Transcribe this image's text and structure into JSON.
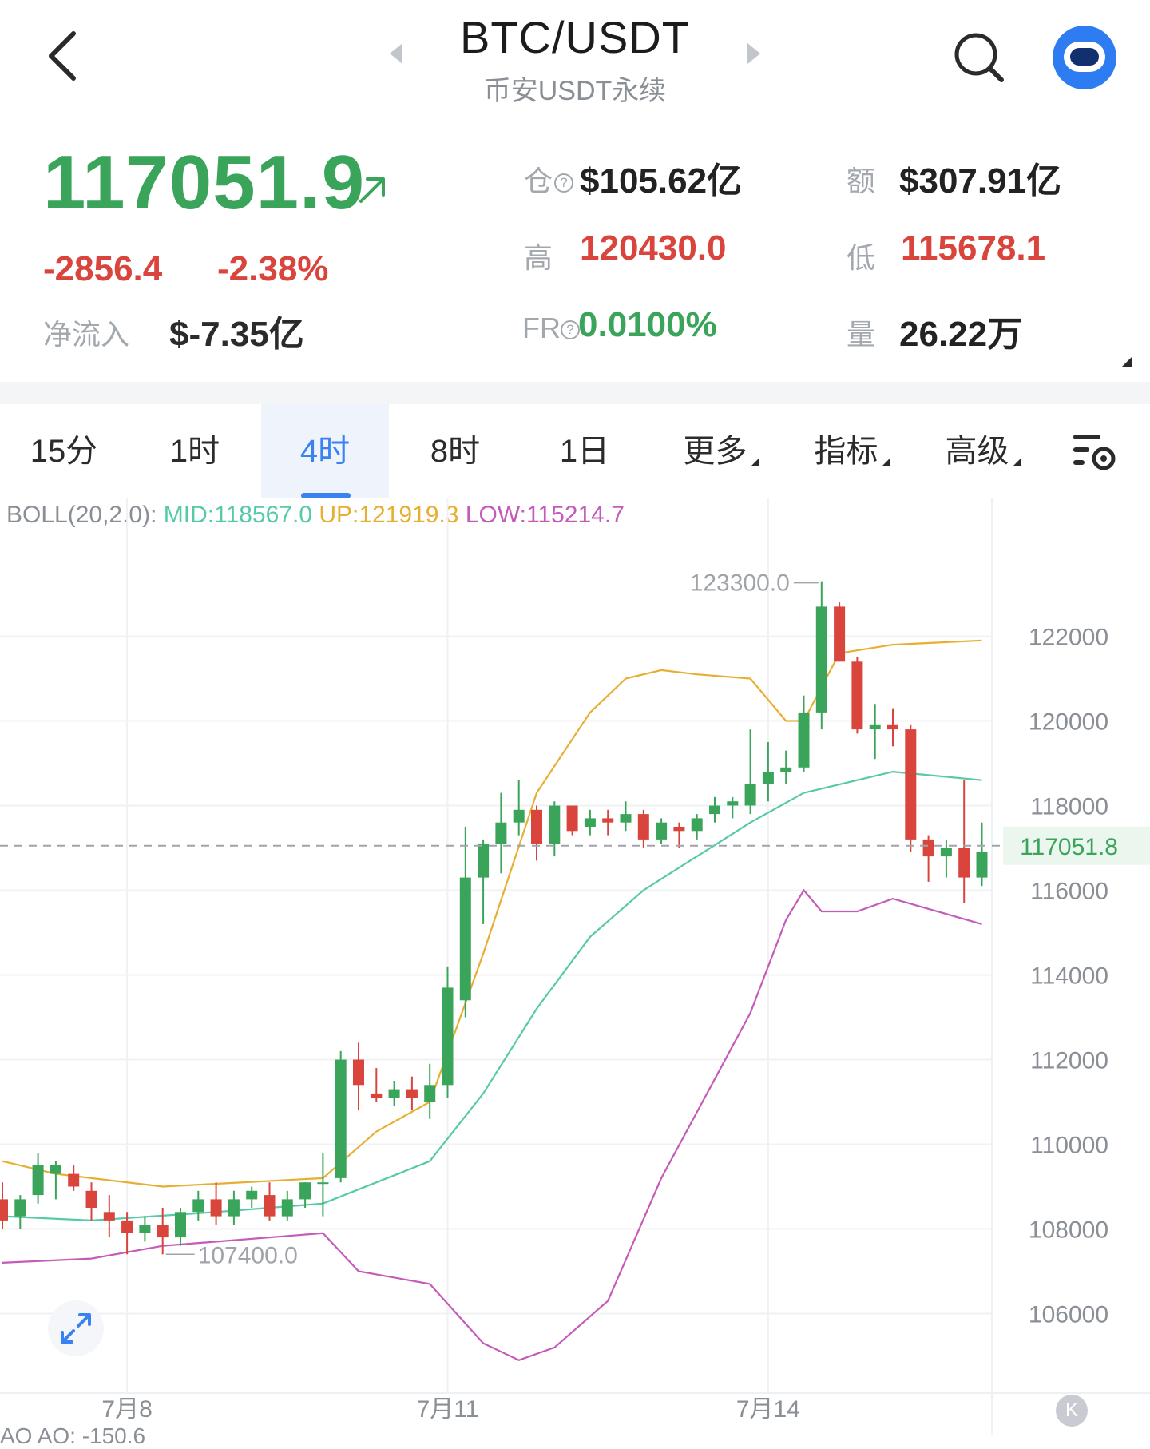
{
  "header": {
    "title": "BTC/USDT",
    "subtitle": "币安USDT永续"
  },
  "quote": {
    "last_price": "117051.9",
    "change": "-2856.4",
    "change_pct": "-2.38%",
    "net_inflow_label": "净流入",
    "net_inflow": "$-7.35亿",
    "open_interest_label": "仓",
    "open_interest": "$105.62亿",
    "turnover_label": "额",
    "turnover": "$307.91亿",
    "high_label": "高",
    "high": "120430.0",
    "low_label": "低",
    "low": "115678.1",
    "funding_label": "FR",
    "funding_rate": "0.0100%",
    "volume_label": "量",
    "volume": "26.22万",
    "help_icon_text": "?"
  },
  "tabs": [
    {
      "label": "15分",
      "active": false
    },
    {
      "label": "1时",
      "active": false
    },
    {
      "label": "4时",
      "active": true
    },
    {
      "label": "8时",
      "active": false
    },
    {
      "label": "1日",
      "active": false
    },
    {
      "label": "更多",
      "active": false,
      "dropdown": true
    },
    {
      "label": "指标",
      "active": false,
      "dropdown": true
    },
    {
      "label": "高级",
      "active": false,
      "dropdown": true
    }
  ],
  "indicator": {
    "name": "BOLL(20,2.0):",
    "mid": "MID:118567.0",
    "up": "UP:121919.3",
    "low": "LOW:115214.7"
  },
  "colors": {
    "up": "#3aa55a",
    "down": "#d9453d",
    "boll_mid": "#56c9a8",
    "boll_up": "#e7ae32",
    "boll_low": "#c45bb8",
    "accent": "#3a82f0"
  },
  "icons": {
    "back": "chevron-left-icon",
    "search": "search-icon",
    "avatar": "robot-avatar-icon",
    "settings": "chart-settings-icon",
    "expand": "expand-arrows-icon"
  },
  "bottom": {
    "indicator_text": "AO AO: -150.6",
    "k_button": "K"
  },
  "chart_data": {
    "type": "candlestick",
    "interval": "4时",
    "ylim": [
      104500,
      124500
    ],
    "y_ticks": [
      106000,
      108000,
      110000,
      112000,
      114000,
      116000,
      118000,
      120000,
      122000
    ],
    "y_tick_labels": [
      "106000",
      "108000",
      "110000",
      "112000",
      "114000",
      "116000",
      "118000",
      "120000",
      "122000"
    ],
    "x_labels": [
      {
        "label": "7月8",
        "index": 7
      },
      {
        "label": "7月11",
        "index": 25
      },
      {
        "label": "7月14",
        "index": 43
      }
    ],
    "last_price_line": 117051.8,
    "last_price_label": "117051.8",
    "max_annotation": {
      "label": "123300.0",
      "index": 46,
      "value": 123300
    },
    "min_annotation": {
      "label": "107400.0",
      "index": 9,
      "value": 107400
    },
    "candles": [
      [
        108700,
        109100,
        108000,
        108200
      ],
      [
        108300,
        108800,
        108000,
        108700
      ],
      [
        108800,
        109800,
        108600,
        109500
      ],
      [
        109300,
        109600,
        108700,
        109500
      ],
      [
        109300,
        109500,
        108900,
        109000
      ],
      [
        108900,
        109100,
        108200,
        108500
      ],
      [
        108400,
        108800,
        107800,
        108200
      ],
      [
        108200,
        108400,
        107400,
        107900
      ],
      [
        107900,
        108300,
        107700,
        108100
      ],
      [
        108100,
        108500,
        107400,
        107800
      ],
      [
        107800,
        108500,
        107600,
        108400
      ],
      [
        108400,
        108900,
        108200,
        108700
      ],
      [
        108700,
        109100,
        108100,
        108300
      ],
      [
        108300,
        108900,
        108100,
        108700
      ],
      [
        108700,
        109000,
        108500,
        108900
      ],
      [
        108800,
        109100,
        108200,
        108300
      ],
      [
        108300,
        108900,
        108200,
        108700
      ],
      [
        108700,
        109100,
        108500,
        109100
      ],
      [
        109100,
        109800,
        108300,
        109100
      ],
      [
        109200,
        112200,
        109100,
        112000
      ],
      [
        112000,
        112400,
        110800,
        111400
      ],
      [
        111200,
        111800,
        111000,
        111100
      ],
      [
        111100,
        111500,
        110900,
        111300
      ],
      [
        111300,
        111600,
        110800,
        111100
      ],
      [
        111000,
        111900,
        110600,
        111400
      ],
      [
        111400,
        114200,
        111100,
        113700
      ],
      [
        113400,
        117500,
        113000,
        116300
      ],
      [
        116300,
        117200,
        115200,
        117100
      ],
      [
        117100,
        118300,
        116400,
        117600
      ],
      [
        117600,
        118600,
        117300,
        117900
      ],
      [
        117900,
        118000,
        116700,
        117100
      ],
      [
        117100,
        118100,
        116800,
        118000
      ],
      [
        118000,
        118000,
        117300,
        117400
      ],
      [
        117500,
        117900,
        117300,
        117700
      ],
      [
        117700,
        117900,
        117300,
        117600
      ],
      [
        117600,
        118100,
        117400,
        117800
      ],
      [
        117800,
        117900,
        117000,
        117200
      ],
      [
        117200,
        117700,
        117100,
        117600
      ],
      [
        117500,
        117600,
        117000,
        117400
      ],
      [
        117400,
        117800,
        117200,
        117700
      ],
      [
        117800,
        118200,
        117600,
        118000
      ],
      [
        118000,
        118200,
        117700,
        118100
      ],
      [
        118000,
        119800,
        117800,
        118500
      ],
      [
        118500,
        119500,
        118100,
        118800
      ],
      [
        118800,
        119300,
        118500,
        118900
      ],
      [
        118900,
        120600,
        118800,
        120200
      ],
      [
        120200,
        123300,
        119800,
        122700
      ],
      [
        122700,
        122800,
        121400,
        121400
      ],
      [
        121400,
        121500,
        119700,
        119800
      ],
      [
        119800,
        120400,
        119100,
        119900
      ],
      [
        119900,
        120300,
        119400,
        119800
      ],
      [
        119800,
        119900,
        116900,
        117200
      ],
      [
        117200,
        117300,
        116200,
        116800
      ],
      [
        116800,
        117200,
        116300,
        117000
      ],
      [
        117000,
        118600,
        115700,
        116300
      ],
      [
        116300,
        117600,
        116100,
        116900
      ]
    ],
    "boll_up": [
      [
        0,
        109600
      ],
      [
        3,
        109300
      ],
      [
        9,
        109000
      ],
      [
        18,
        109200
      ],
      [
        21,
        110300
      ],
      [
        24,
        111000
      ],
      [
        27,
        114500
      ],
      [
        30,
        118300
      ],
      [
        33,
        120200
      ],
      [
        35,
        121000
      ],
      [
        37,
        121200
      ],
      [
        39,
        121100
      ],
      [
        42,
        121000
      ],
      [
        44,
        120000
      ],
      [
        45,
        120000
      ],
      [
        47,
        121600
      ],
      [
        50,
        121800
      ],
      [
        55,
        121900
      ]
    ],
    "boll_mid": [
      [
        0,
        108300
      ],
      [
        5,
        108200
      ],
      [
        12,
        108400
      ],
      [
        18,
        108600
      ],
      [
        21,
        109100
      ],
      [
        24,
        109600
      ],
      [
        27,
        111200
      ],
      [
        30,
        113200
      ],
      [
        33,
        114900
      ],
      [
        36,
        116000
      ],
      [
        39,
        116800
      ],
      [
        42,
        117600
      ],
      [
        45,
        118300
      ],
      [
        48,
        118600
      ],
      [
        50,
        118800
      ],
      [
        55,
        118600
      ]
    ],
    "boll_low": [
      [
        0,
        107200
      ],
      [
        5,
        107300
      ],
      [
        9,
        107600
      ],
      [
        18,
        107900
      ],
      [
        20,
        107000
      ],
      [
        24,
        106700
      ],
      [
        27,
        105300
      ],
      [
        29,
        104900
      ],
      [
        31,
        105200
      ],
      [
        34,
        106300
      ],
      [
        37,
        109200
      ],
      [
        42,
        113100
      ],
      [
        44,
        115300
      ],
      [
        45,
        116000
      ],
      [
        46,
        115500
      ],
      [
        48,
        115500
      ],
      [
        50,
        115800
      ],
      [
        55,
        115200
      ]
    ]
  }
}
